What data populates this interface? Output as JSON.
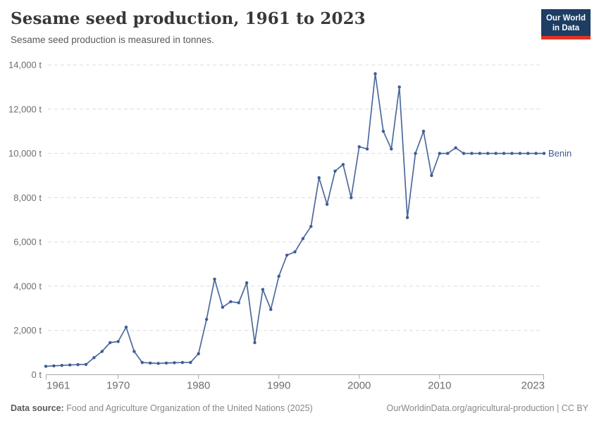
{
  "header": {
    "title": "Sesame seed production, 1961 to 2023",
    "subtitle": "Sesame seed production is measured in tonnes.",
    "logo": {
      "line1": "Our World",
      "line2": "in Data",
      "bg": "#1d3d63",
      "accent": "#e23323"
    }
  },
  "chart_data": {
    "type": "line",
    "title": "Sesame seed production, 1961 to 2023",
    "ylabel": "",
    "xlabel": "",
    "unit": "t",
    "xlim": [
      1961,
      2023
    ],
    "ylim": [
      0,
      14000
    ],
    "grid": "horizontal-dashed",
    "legend_position": "end-of-line-label",
    "x": [
      1961,
      1962,
      1963,
      1964,
      1965,
      1966,
      1967,
      1968,
      1969,
      1970,
      1971,
      1972,
      1973,
      1974,
      1975,
      1976,
      1977,
      1978,
      1979,
      1980,
      1981,
      1982,
      1983,
      1984,
      1985,
      1986,
      1987,
      1988,
      1989,
      1990,
      1991,
      1992,
      1993,
      1994,
      1995,
      1996,
      1997,
      1998,
      1999,
      2000,
      2001,
      2002,
      2003,
      2004,
      2005,
      2006,
      2007,
      2008,
      2009,
      2010,
      2011,
      2012,
      2013,
      2014,
      2015,
      2016,
      2017,
      2018,
      2019,
      2020,
      2021,
      2022,
      2023
    ],
    "series": [
      {
        "name": "Benin",
        "color": "#4c6a9c",
        "marker_color": "#3d5c96",
        "values": [
          380,
          400,
          420,
          440,
          455,
          465,
          770,
          1050,
          1450,
          1500,
          2150,
          1050,
          550,
          530,
          510,
          530,
          540,
          550,
          555,
          950,
          2500,
          4320,
          3050,
          3300,
          3250,
          4150,
          1450,
          3850,
          2950,
          4450,
          5400,
          5550,
          6150,
          6700,
          8900,
          7700,
          9200,
          9500,
          8000,
          10300,
          10200,
          13600,
          11000,
          10200,
          13000,
          7100,
          10000,
          11000,
          9000,
          10000,
          10000,
          10250,
          10000,
          10000,
          10000,
          10000,
          10000,
          10000,
          10000,
          10000,
          10000,
          10000,
          10000
        ]
      }
    ],
    "x_ticks": [
      {
        "value": 1961,
        "label": "1961"
      },
      {
        "value": 1970,
        "label": "1970"
      },
      {
        "value": 1980,
        "label": "1980"
      },
      {
        "value": 1990,
        "label": "1990"
      },
      {
        "value": 2000,
        "label": "2000"
      },
      {
        "value": 2010,
        "label": "2010"
      },
      {
        "value": 2023,
        "label": "2023"
      }
    ],
    "y_ticks": [
      {
        "value": 0,
        "label": "0 t"
      },
      {
        "value": 2000,
        "label": "2,000 t"
      },
      {
        "value": 4000,
        "label": "4,000 t"
      },
      {
        "value": 6000,
        "label": "6,000 t"
      },
      {
        "value": 8000,
        "label": "8,000 t"
      },
      {
        "value": 10000,
        "label": "10,000 t"
      },
      {
        "value": 12000,
        "label": "12,000 t"
      },
      {
        "value": 14000,
        "label": "14,000 t"
      }
    ],
    "colors": {
      "grid": "#dcdcdc",
      "axis": "#a8a8a8",
      "tick_label": "#6e6e6e"
    }
  },
  "footer": {
    "source_label": "Data source:",
    "source_text": " Food and Agriculture Organization of the United Nations (2025)",
    "link": "OurWorldinData.org/agricultural-production",
    "license": " | CC BY"
  }
}
